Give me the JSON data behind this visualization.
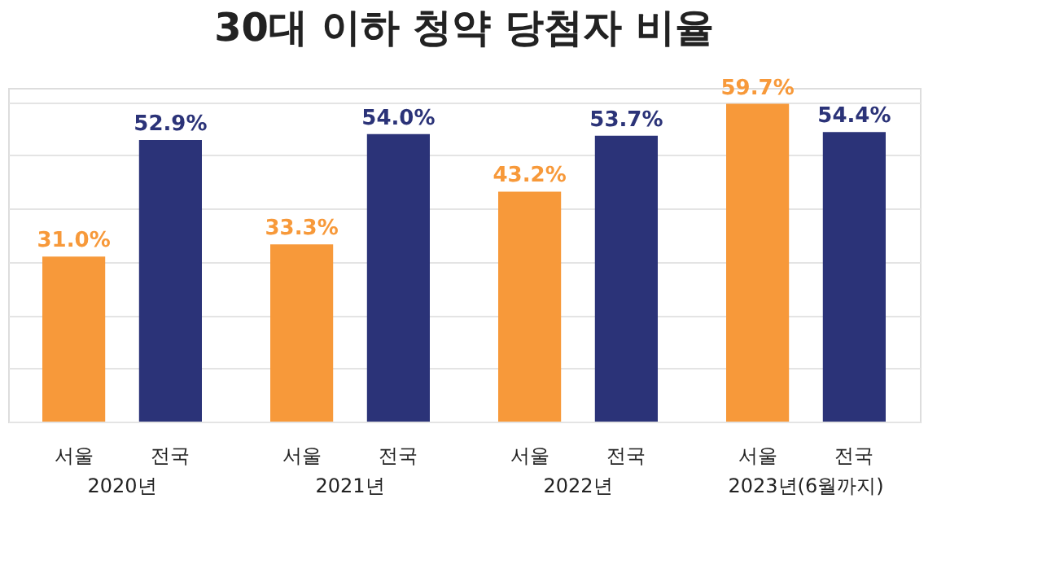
{
  "chart_data": {
    "type": "bar",
    "title": "30대 이하 청약 당첨자 비율",
    "categories": [
      "2020년",
      "2021년",
      "2022년",
      "2023년(6월까지)"
    ],
    "series": [
      {
        "name": "서울",
        "color": "#f7993a",
        "values": [
          31.0,
          33.3,
          43.2,
          59.7
        ],
        "value_labels": [
          "31.0%",
          "33.3%",
          "43.2%",
          "59.7%"
        ]
      },
      {
        "name": "전국",
        "color": "#2b3378",
        "values": [
          52.9,
          54.0,
          53.7,
          54.4
        ],
        "value_labels": [
          "52.9%",
          "54.0%",
          "53.7%",
          "54.4%"
        ]
      }
    ],
    "tick_labels": "x",
    "grid": "y",
    "legend": false
  }
}
